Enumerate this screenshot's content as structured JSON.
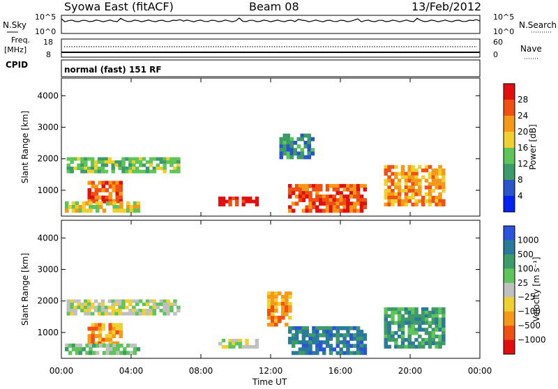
{
  "header": {
    "station": "Syowa East (fitACF)",
    "beam": "Beam 08",
    "date": "13/Feb/2012"
  },
  "strips": {
    "nsky_label": "N.Sky",
    "nsky_ticks": [
      "10^5",
      "10^0"
    ],
    "nsearch_label": "N.Search",
    "nsearch_ticks": [
      "10^5",
      "10^0"
    ],
    "freq_label_1": "Freq.",
    "freq_label_2": "[MHz]",
    "freq_ticks": [
      "18",
      "8"
    ],
    "nave_label": "Nave",
    "nave_ticks": [
      "60",
      "0"
    ],
    "cpid_label": "CPID",
    "cpid_text": "normal (fast) 151 RF"
  },
  "chart_data": [
    {
      "type": "heatmap",
      "name": "power",
      "ylabel": "Slant Range [km]",
      "ylim": [
        180,
        4560
      ],
      "yticks": [
        "1000",
        "2000",
        "3000",
        "4000"
      ],
      "colorbar_label": "Power [dB]",
      "colorbar_ticks": [
        "4",
        "8",
        "12",
        "16",
        "20",
        "24",
        "28"
      ],
      "colors": [
        "#0022ee",
        "#2a55c8",
        "#3f9a6a",
        "#5fc45a",
        "#f0d030",
        "#f59a18",
        "#f05014",
        "#e01010"
      ],
      "regions": [
        {
          "t0": 0.3,
          "t1": 6.8,
          "r0": 1550,
          "r1": 2050,
          "level": 3
        },
        {
          "t0": 1.5,
          "t1": 3.5,
          "r0": 600,
          "r1": 1300,
          "level": 6
        },
        {
          "t0": 0.2,
          "t1": 4.5,
          "r0": 300,
          "r1": 650,
          "level": 4
        },
        {
          "t0": 9.0,
          "t1": 11.3,
          "r0": 500,
          "r1": 800,
          "level": 7
        },
        {
          "t0": 13.0,
          "t1": 17.5,
          "r0": 300,
          "r1": 1200,
          "level": 6
        },
        {
          "t0": 18.5,
          "t1": 22.0,
          "r0": 500,
          "r1": 1800,
          "level": 5
        },
        {
          "t0": 12.5,
          "t1": 14.5,
          "r0": 2000,
          "r1": 2800,
          "level": 2
        }
      ]
    },
    {
      "type": "heatmap",
      "name": "velocity",
      "ylabel": "Slant Range [km]",
      "xlabel": "Time UT",
      "ylim": [
        180,
        4560
      ],
      "yticks": [
        "1000",
        "2000",
        "3000",
        "4000"
      ],
      "xticks": [
        "00:00",
        "04:00",
        "08:00",
        "12:00",
        "16:00",
        "20:00",
        "00:00"
      ],
      "colorbar_label": "Velocity [m s⁻¹]",
      "colorbar_ticks": [
        "1000",
        "500",
        "100",
        "25",
        "−25",
        "−100",
        "−500",
        "−1000"
      ],
      "colors": [
        "#2a55d8",
        "#2a7a9a",
        "#3f9a6a",
        "#5fc45a",
        "#c0c0c0",
        "#f0d030",
        "#f59a18",
        "#f05014",
        "#e01010"
      ],
      "regions": [
        {
          "t0": 0.3,
          "t1": 6.8,
          "r0": 1550,
          "r1": 2050,
          "level": 4
        },
        {
          "t0": 1.5,
          "t1": 3.5,
          "r0": 600,
          "r1": 1300,
          "level": 6
        },
        {
          "t0": 0.2,
          "t1": 4.5,
          "r0": 300,
          "r1": 650,
          "level": 3
        },
        {
          "t0": 9.0,
          "t1": 11.3,
          "r0": 500,
          "r1": 800,
          "level": 4
        },
        {
          "t0": 13.0,
          "t1": 17.5,
          "r0": 300,
          "r1": 1200,
          "level": 1
        },
        {
          "t0": 18.5,
          "t1": 22.0,
          "r0": 500,
          "r1": 1800,
          "level": 2
        },
        {
          "t0": 11.8,
          "t1": 13.2,
          "r0": 1200,
          "r1": 2300,
          "level": 6
        }
      ]
    }
  ]
}
